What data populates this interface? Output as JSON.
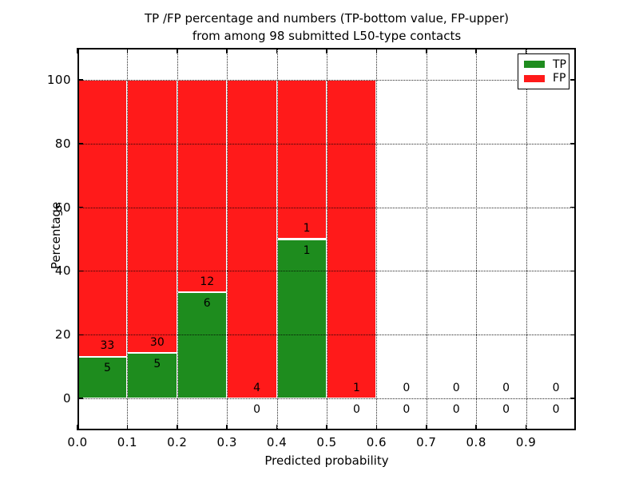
{
  "title": {
    "line1": "TP /FP percentage and numbers (TP-bottom value, FP-upper)",
    "line2": "from among 98 submitted L50-type contacts"
  },
  "axes": {
    "xlabel": "Predicted probability",
    "ylabel": "Percentage"
  },
  "legend": [
    {
      "label": "TP",
      "color": "#1e8c1e"
    },
    {
      "label": "FP",
      "color": "#ff1a1a"
    }
  ],
  "chart_data": {
    "type": "bar",
    "stacked": true,
    "normalized_to": "percentage of bin total",
    "title": "TP /FP percentage and numbers (TP-bottom value, FP-upper)\nfrom among 98 submitted L50-type contacts",
    "xlabel": "Predicted probability",
    "ylabel": "Percentage",
    "xlim": [
      0.0,
      1.0
    ],
    "ylim": [
      -10,
      110
    ],
    "x_tick_labels": [
      "0.0",
      "0.1",
      "0.2",
      "0.3",
      "0.4",
      "0.5",
      "0.6",
      "0.7",
      "0.8",
      "0.9"
    ],
    "y_tick_values": [
      0,
      20,
      40,
      60,
      80,
      100
    ],
    "grid": {
      "on": true,
      "style": "dotted",
      "axes": "both"
    },
    "legend_position": "upper right",
    "total_contacts": 98,
    "bin_width": 0.1,
    "bins": [
      {
        "x_start": 0.0,
        "x_end": 0.1,
        "tp": 5,
        "fp": 33,
        "tp_pct": 13.16,
        "fp_pct": 86.84
      },
      {
        "x_start": 0.1,
        "x_end": 0.2,
        "tp": 5,
        "fp": 30,
        "tp_pct": 14.29,
        "fp_pct": 85.71
      },
      {
        "x_start": 0.2,
        "x_end": 0.3,
        "tp": 6,
        "fp": 12,
        "tp_pct": 33.33,
        "fp_pct": 66.67
      },
      {
        "x_start": 0.3,
        "x_end": 0.4,
        "tp": 0,
        "fp": 4,
        "tp_pct": 0,
        "fp_pct": 100
      },
      {
        "x_start": 0.4,
        "x_end": 0.5,
        "tp": 1,
        "fp": 1,
        "tp_pct": 50,
        "fp_pct": 50
      },
      {
        "x_start": 0.5,
        "x_end": 0.6,
        "tp": 0,
        "fp": 1,
        "tp_pct": 0,
        "fp_pct": 100
      },
      {
        "x_start": 0.6,
        "x_end": 0.7,
        "tp": 0,
        "fp": 0,
        "tp_pct": 0,
        "fp_pct": 0
      },
      {
        "x_start": 0.7,
        "x_end": 0.8,
        "tp": 0,
        "fp": 0,
        "tp_pct": 0,
        "fp_pct": 0
      },
      {
        "x_start": 0.8,
        "x_end": 0.9,
        "tp": 0,
        "fp": 0,
        "tp_pct": 0,
        "fp_pct": 0
      },
      {
        "x_start": 0.9,
        "x_end": 1.0,
        "tp": 0,
        "fp": 0,
        "tp_pct": 0,
        "fp_pct": 0
      }
    ],
    "series": [
      {
        "name": "TP",
        "color": "#1e8c1e",
        "values": [
          5,
          5,
          6,
          0,
          1,
          0,
          0,
          0,
          0,
          0
        ]
      },
      {
        "name": "FP",
        "color": "#ff1a1a",
        "values": [
          33,
          30,
          12,
          4,
          1,
          1,
          0,
          0,
          0,
          0
        ]
      }
    ],
    "colors": {
      "tp": "#1e8c1e",
      "fp": "#ff1a1a",
      "grid": "#000000",
      "bar_edge": "#ffffff"
    }
  }
}
